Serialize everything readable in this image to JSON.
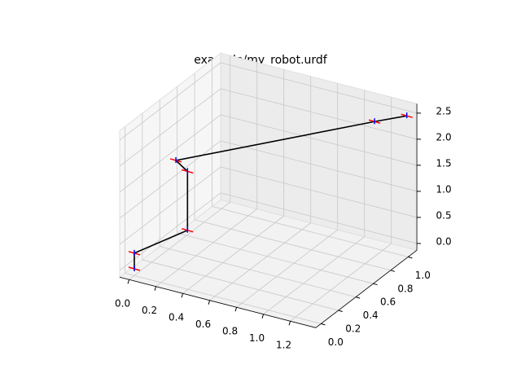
{
  "chart_data": {
    "type": "line3d",
    "title": "example/my_robot.urdf",
    "x": [
      0,
      0,
      0.13,
      0.13,
      0.05,
      1.14,
      1.38
    ],
    "y": [
      0,
      0,
      0.41,
      0.41,
      0.4,
      1.0,
      1.0
    ],
    "z": [
      0,
      0.3,
      0.3,
      1.43,
      1.6,
      2.3,
      2.57
    ],
    "color": "#000000",
    "xlim": [
      -0.07,
      1.39
    ],
    "ylim": [
      -0.06,
      1.1
    ],
    "zlim": [
      -0.13,
      2.68
    ],
    "xticks": [
      {
        "value": 0,
        "label": "0.0"
      },
      {
        "value": 0.2,
        "label": "0.2"
      },
      {
        "value": 0.4,
        "label": "0.4"
      },
      {
        "value": 0.6,
        "label": "0.6"
      },
      {
        "value": 0.8,
        "label": "0.8"
      },
      {
        "value": 1.0,
        "label": "1.0"
      },
      {
        "value": 1.2,
        "label": "1.2"
      }
    ],
    "yticks": [
      {
        "value": 0,
        "label": "0.0"
      },
      {
        "value": 0.2,
        "label": "0.2"
      },
      {
        "value": 0.4,
        "label": "0.4"
      },
      {
        "value": 0.6,
        "label": "0.6"
      },
      {
        "value": 0.8,
        "label": "0.8"
      },
      {
        "value": 1.0,
        "label": "1.0"
      }
    ],
    "zticks": [
      {
        "value": 0,
        "label": "0.0"
      },
      {
        "value": 0.5,
        "label": "0.5"
      },
      {
        "value": 1.0,
        "label": "1.0"
      },
      {
        "value": 1.5,
        "label": "1.5"
      },
      {
        "value": 2.0,
        "label": "2.0"
      },
      {
        "value": 2.5,
        "label": "2.5"
      }
    ],
    "grid": true
  }
}
